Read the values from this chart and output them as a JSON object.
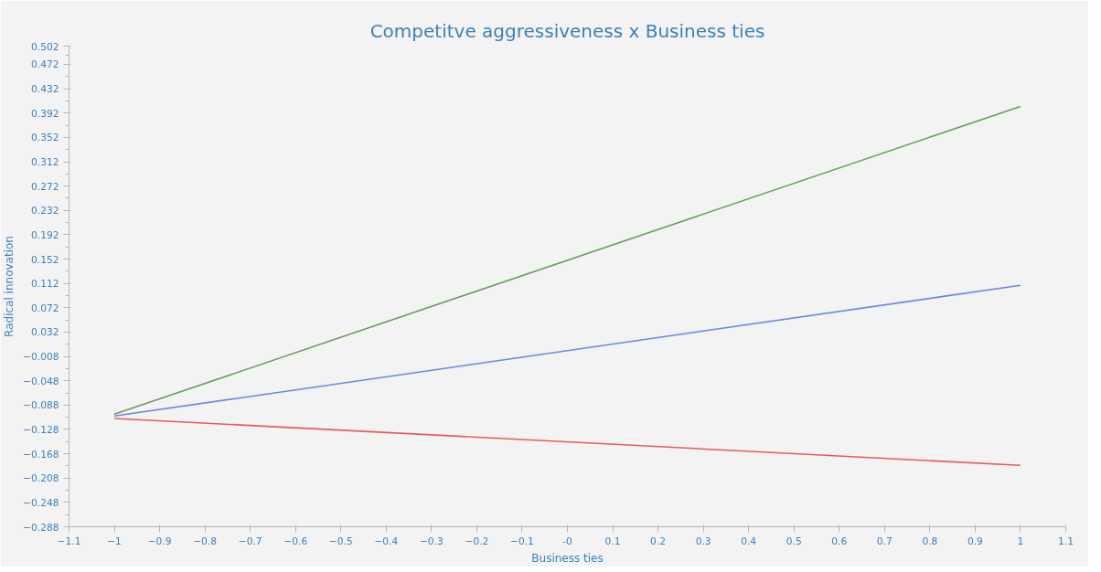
{
  "chart_data": {
    "type": "line",
    "title": "Competitve aggressiveness x Business ties",
    "xlabel": "Business ties",
    "ylabel": "Radical innovation",
    "x": [
      -1,
      1
    ],
    "series": [
      {
        "color": "#6a9a62",
        "values": [
          -0.103,
          0.403
        ]
      },
      {
        "color": "#6f82e8",
        "values": [
          -0.106,
          0.109
        ]
      },
      {
        "color": "#e85a5a",
        "values": [
          -0.11,
          -0.187
        ]
      }
    ],
    "xlim": [
      -1.1,
      1.1
    ],
    "xticks": [
      -1.1,
      -1,
      -0.9,
      -0.8,
      -0.7,
      -0.6,
      -0.5,
      -0.4,
      -0.3,
      -0.2,
      -0.1,
      {
        "value": 0,
        "label": "-0"
      },
      0.1,
      0.2,
      0.3,
      0.4,
      0.5,
      0.6,
      0.7,
      0.8,
      0.9,
      1,
      1.1
    ],
    "ylim": [
      -0.288,
      0.502
    ],
    "yticks": [
      -0.288,
      -0.248,
      -0.208,
      -0.168,
      -0.128,
      -0.088,
      -0.048,
      -0.008,
      0.032,
      0.072,
      0.112,
      0.152,
      0.192,
      0.232,
      0.272,
      0.312,
      0.352,
      0.392,
      0.432,
      0.472,
      0.502
    ],
    "grid": false,
    "marker": "none",
    "line_style": "solid"
  }
}
